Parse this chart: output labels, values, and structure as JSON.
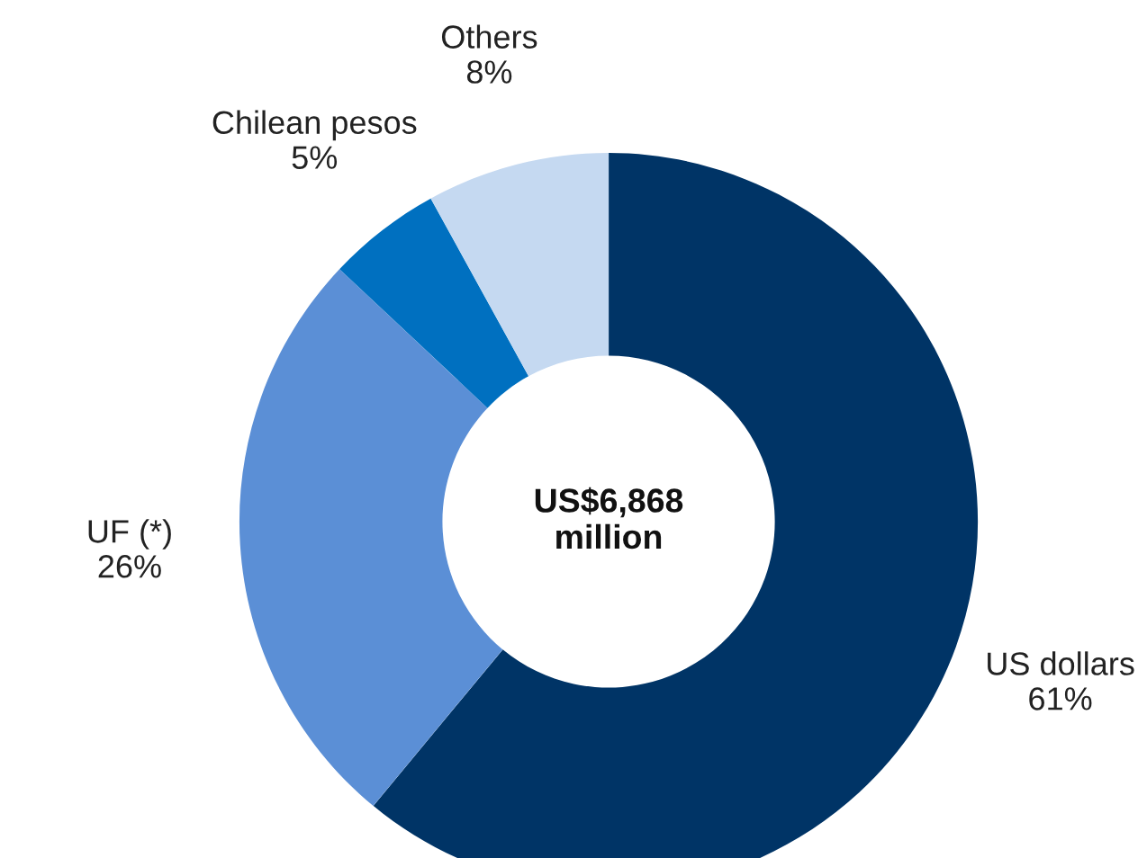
{
  "chart_data": {
    "type": "donut",
    "categories": [
      "US dollars",
      "UF (*)",
      "Chilean pesos",
      "Others"
    ],
    "values": [
      61,
      26,
      5,
      8
    ],
    "colors": [
      "#003466",
      "#5b8fd6",
      "#0070c0",
      "#c5d9f1"
    ],
    "value_labels": [
      "61%",
      "26%",
      "5%",
      "8%"
    ],
    "annotations": [
      "US$6,868\nmillion"
    ]
  }
}
